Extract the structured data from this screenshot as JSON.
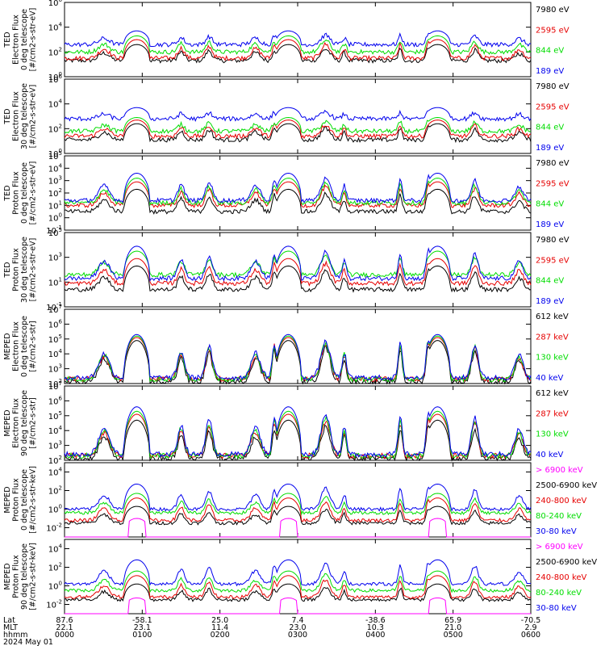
{
  "colors": {
    "black": "#000000",
    "red": "#e60000",
    "green": "#00dd00",
    "blue": "#0000ee",
    "magenta": "#ff00ff"
  },
  "footer": {
    "rows": [
      {
        "label": "Lat",
        "values": [
          "87.6",
          "-58.1",
          "25.0",
          "7.4",
          "-38.6",
          "65.9",
          "-70.5"
        ]
      },
      {
        "label": "MLT",
        "values": [
          "22.1",
          "23.1",
          "11.4",
          "23.0",
          "10.3",
          "21.0",
          "2.9"
        ]
      },
      {
        "label": "hhmm",
        "values": [
          "0000",
          "0100",
          "0200",
          "0300",
          "0400",
          "0500",
          "0600"
        ]
      }
    ],
    "date": "2024 May 01"
  },
  "chart_data": [
    {
      "type": "line",
      "ylabel": [
        "TED",
        "Electron Flux",
        "0 deg telescope",
        "[#/cm2-s-str-eV]"
      ],
      "yticks": [
        {
          "base": "10",
          "exp": "0"
        },
        {
          "base": "10",
          "exp": "2"
        },
        {
          "base": "10",
          "exp": "4"
        },
        {
          "base": "10",
          "exp": "6"
        }
      ],
      "ylim_log10": [
        0,
        6
      ],
      "legend": [
        {
          "label": "7980 eV",
          "color": "black"
        },
        {
          "label": "2595 eV",
          "color": "red"
        },
        {
          "label": "844 eV",
          "color": "green"
        },
        {
          "label": "189 eV",
          "color": "blue"
        }
      ],
      "series": [
        {
          "color": "black",
          "base": 1.3,
          "peak": 2.3
        },
        {
          "color": "red",
          "base": 1.5,
          "peak": 2.7
        },
        {
          "color": "green",
          "base": 2.0,
          "peak": 3.0
        },
        {
          "color": "blue",
          "base": 2.6,
          "peak": 3.4
        }
      ]
    },
    {
      "type": "line",
      "ylabel": [
        "TED",
        "Electron Flux",
        "30 deg telescope",
        "[#/cm2-s-str-eV]"
      ],
      "yticks": [
        {
          "base": "10",
          "exp": "0"
        },
        {
          "base": "10",
          "exp": "2"
        },
        {
          "base": "10",
          "exp": "4"
        },
        {
          "base": "10",
          "exp": "6"
        }
      ],
      "ylim_log10": [
        0,
        6
      ],
      "legend": [
        {
          "label": "7980 eV",
          "color": "black"
        },
        {
          "label": "2595 eV",
          "color": "red"
        },
        {
          "label": "844 eV",
          "color": "green"
        },
        {
          "label": "189 eV",
          "color": "blue"
        }
      ],
      "series": [
        {
          "color": "black",
          "base": 1.1,
          "peak": 2.1
        },
        {
          "color": "red",
          "base": 1.4,
          "peak": 2.4
        },
        {
          "color": "green",
          "base": 1.8,
          "peak": 2.6
        },
        {
          "color": "blue",
          "base": 2.8,
          "peak": 3.4
        }
      ]
    },
    {
      "type": "line",
      "ylabel": [
        "TED",
        "Proton Flux",
        "0 deg telescope",
        "[#/cm2-s-str-eV]"
      ],
      "yticks": [
        {
          "base": "10",
          "exp": "-1"
        },
        {
          "base": "10",
          "exp": "0"
        },
        {
          "base": "10",
          "exp": "1"
        },
        {
          "base": "10",
          "exp": "2"
        },
        {
          "base": "10",
          "exp": "3"
        },
        {
          "base": "10",
          "exp": "4"
        },
        {
          "base": "10",
          "exp": "5"
        }
      ],
      "ylim_log10": [
        -1,
        5
      ],
      "legend": [
        {
          "label": "7980 eV",
          "color": "black"
        },
        {
          "label": "2595 eV",
          "color": "red"
        },
        {
          "label": "844 eV",
          "color": "green"
        },
        {
          "label": "189 eV",
          "color": "blue"
        }
      ],
      "series": [
        {
          "color": "black",
          "base": 0.5,
          "peak": 2.0
        },
        {
          "color": "red",
          "base": 1.0,
          "peak": 2.6
        },
        {
          "color": "green",
          "base": 1.2,
          "peak": 2.9
        },
        {
          "color": "blue",
          "base": 1.4,
          "peak": 3.3
        }
      ]
    },
    {
      "type": "line",
      "ylabel": [
        "TED",
        "Proton Flux",
        "30 deg telescope",
        "[#/cm2-s-str-eV]"
      ],
      "yticks": [
        {
          "base": "10",
          "exp": "-1"
        },
        {
          "base": "10",
          "exp": "1"
        },
        {
          "base": "10",
          "exp": "3"
        },
        {
          "base": "10",
          "exp": "5"
        }
      ],
      "ylim_log10": [
        -1,
        5
      ],
      "legend": [
        {
          "label": "7980 eV",
          "color": "black"
        },
        {
          "label": "2595 eV",
          "color": "red"
        },
        {
          "label": "844 eV",
          "color": "green"
        },
        {
          "label": "189 eV",
          "color": "blue"
        }
      ],
      "series": [
        {
          "color": "black",
          "base": 0.4,
          "peak": 2.0
        },
        {
          "color": "red",
          "base": 0.9,
          "peak": 2.6
        },
        {
          "color": "green",
          "base": 1.6,
          "peak": 3.2
        },
        {
          "color": "blue",
          "base": 1.3,
          "peak": 3.6
        }
      ]
    },
    {
      "type": "line",
      "ylabel": [
        "MEPED",
        "Electron Flux",
        "0 deg telescope",
        "[#/cm2-s-str]"
      ],
      "yticks": [
        {
          "base": "10",
          "exp": "2"
        },
        {
          "base": "10",
          "exp": "3"
        },
        {
          "base": "10",
          "exp": "4"
        },
        {
          "base": "10",
          "exp": "5"
        },
        {
          "base": "10",
          "exp": "6"
        },
        {
          "base": "10",
          "exp": "7"
        }
      ],
      "ylim_log10": [
        2,
        7
      ],
      "legend": [
        {
          "label": "612 keV",
          "color": "black"
        },
        {
          "label": "287 keV",
          "color": "red"
        },
        {
          "label": "130 keV",
          "color": "green"
        },
        {
          "label": "40 keV",
          "color": "blue"
        }
      ],
      "series": [
        {
          "color": "black",
          "base": 2.1,
          "peak": 4.6
        },
        {
          "color": "red",
          "base": 2.3,
          "peak": 4.8
        },
        {
          "color": "green",
          "base": 2.3,
          "peak": 4.9
        },
        {
          "color": "blue",
          "base": 2.4,
          "peak": 5.0
        }
      ]
    },
    {
      "type": "line",
      "ylabel": [
        "MEPED",
        "Electron Flux",
        "90 deg telescope",
        "[#/cm2-s-str]"
      ],
      "yticks": [
        {
          "base": "10",
          "exp": "2"
        },
        {
          "base": "10",
          "exp": "3"
        },
        {
          "base": "10",
          "exp": "4"
        },
        {
          "base": "10",
          "exp": "5"
        },
        {
          "base": "10",
          "exp": "6"
        },
        {
          "base": "10",
          "exp": "7"
        }
      ],
      "ylim_log10": [
        2,
        7
      ],
      "legend": [
        {
          "label": "612 keV",
          "color": "black"
        },
        {
          "label": "287 keV",
          "color": "red"
        },
        {
          "label": "130 keV",
          "color": "green"
        },
        {
          "label": "40 keV",
          "color": "blue"
        }
      ],
      "series": [
        {
          "color": "black",
          "base": 2.1,
          "peak": 4.4
        },
        {
          "color": "red",
          "base": 2.3,
          "peak": 4.8
        },
        {
          "color": "green",
          "base": 2.3,
          "peak": 5.0
        },
        {
          "color": "blue",
          "base": 2.4,
          "peak": 5.3
        }
      ]
    },
    {
      "type": "line",
      "ylabel": [
        "MEPED",
        "Proton Flux",
        "0 deg telescope",
        "[#/cm2-s-str-keV]"
      ],
      "yticks": [
        {
          "base": "10",
          "exp": "-2"
        },
        {
          "base": "10",
          "exp": "0"
        },
        {
          "base": "10",
          "exp": "2"
        },
        {
          "base": "10",
          "exp": "4"
        }
      ],
      "ylim_log10": [
        -3,
        5
      ],
      "legend": [
        {
          "label": "> 6900 keV",
          "color": "magenta"
        },
        {
          "label": "2500-6900 keV",
          "color": "black"
        },
        {
          "label": "240-800 keV",
          "color": "red"
        },
        {
          "label": "80-240 keV",
          "color": "green"
        },
        {
          "label": "30-80 keV",
          "color": "blue"
        }
      ],
      "series": [
        {
          "color": "magenta",
          "base": -2.6,
          "peak": -1.3
        },
        {
          "color": "black",
          "base": -1.5,
          "peak": 0.0
        },
        {
          "color": "red",
          "base": -1.2,
          "peak": 0.9
        },
        {
          "color": "green",
          "base": -0.4,
          "peak": 1.4
        },
        {
          "color": "blue",
          "base": 0.0,
          "peak": 2.4
        }
      ]
    },
    {
      "type": "line",
      "ylabel": [
        "MEPED",
        "Proton Flux",
        "90 deg telescope",
        "[#/cm2-s-str-keV]"
      ],
      "yticks": [
        {
          "base": "10",
          "exp": "-2"
        },
        {
          "base": "10",
          "exp": "0"
        },
        {
          "base": "10",
          "exp": "2"
        },
        {
          "base": "10",
          "exp": "4"
        }
      ],
      "ylim_log10": [
        -3,
        5
      ],
      "legend": [
        {
          "label": "> 6900 keV",
          "color": "magenta"
        },
        {
          "label": "2500-6900 keV",
          "color": "black"
        },
        {
          "label": "240-800 keV",
          "color": "red"
        },
        {
          "label": "80-240 keV",
          "color": "green"
        },
        {
          "label": "30-80 keV",
          "color": "blue"
        }
      ],
      "series": [
        {
          "color": "magenta",
          "base": -2.6,
          "peak": -1.6
        },
        {
          "color": "black",
          "base": -1.5,
          "peak": -0.1
        },
        {
          "color": "red",
          "base": -1.2,
          "peak": 0.8
        },
        {
          "color": "green",
          "base": -0.5,
          "peak": 1.3
        },
        {
          "color": "blue",
          "base": 0.2,
          "peak": 2.5
        }
      ]
    }
  ]
}
